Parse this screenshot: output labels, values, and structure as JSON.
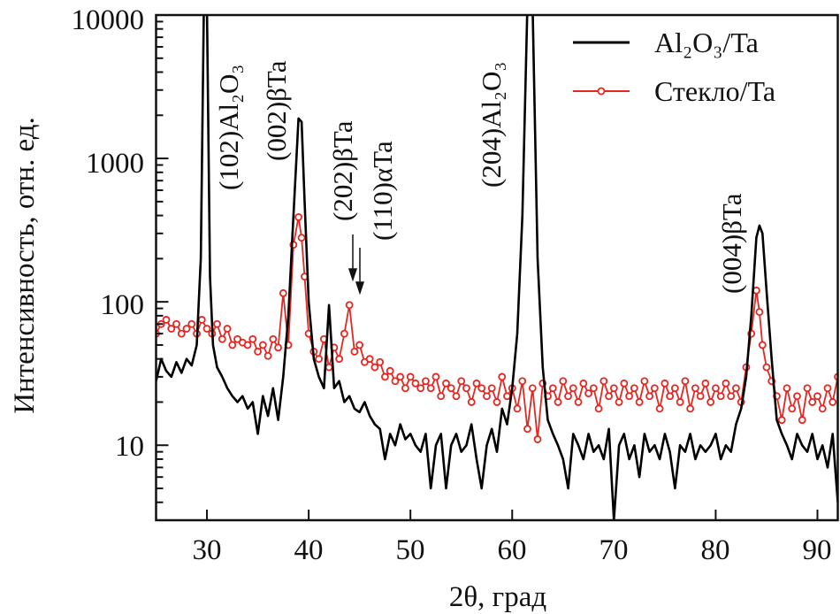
{
  "chart_data": {
    "type": "line",
    "title": "",
    "xlabel": "2θ, град",
    "ylabel": "Интенсивность, отн. ед.",
    "xlim": [
      25,
      92
    ],
    "ylim": [
      3,
      10000
    ],
    "yscale": "log",
    "grid": false,
    "legend_position": "top-right",
    "x_ticks": [
      "30",
      "40",
      "50",
      "60",
      "70",
      "80",
      "90"
    ],
    "y_ticks": [
      "10",
      "100",
      "1000",
      "10000"
    ],
    "series": [
      {
        "name": "Al₂O₃/Ta",
        "color": "#000000",
        "marker": "none",
        "points": [
          [
            25,
            28
          ],
          [
            25.5,
            40
          ],
          [
            26,
            33
          ],
          [
            26.5,
            30
          ],
          [
            27,
            38
          ],
          [
            27.5,
            32
          ],
          [
            28,
            40
          ],
          [
            28.5,
            36
          ],
          [
            29,
            50
          ],
          [
            29.4,
            200
          ],
          [
            29.7,
            12000
          ],
          [
            30,
            12000
          ],
          [
            30.3,
            150
          ],
          [
            30.6,
            50
          ],
          [
            31,
            35
          ],
          [
            31.5,
            30
          ],
          [
            32,
            25
          ],
          [
            32.5,
            22
          ],
          [
            33,
            20
          ],
          [
            33.5,
            22
          ],
          [
            34,
            18
          ],
          [
            34.5,
            20
          ],
          [
            35,
            12
          ],
          [
            35.5,
            22
          ],
          [
            36,
            16
          ],
          [
            36.5,
            25
          ],
          [
            37,
            15
          ],
          [
            37.5,
            30
          ],
          [
            38,
            80
          ],
          [
            38.5,
            400
          ],
          [
            39,
            1900
          ],
          [
            39.3,
            1800
          ],
          [
            39.6,
            500
          ],
          [
            40,
            100
          ],
          [
            40.5,
            40
          ],
          [
            41,
            30
          ],
          [
            41.5,
            25
          ],
          [
            42,
            95
          ],
          [
            42.5,
            25
          ],
          [
            43,
            28
          ],
          [
            43.5,
            20
          ],
          [
            44,
            22
          ],
          [
            44.5,
            18
          ],
          [
            45,
            17
          ],
          [
            45.5,
            20
          ],
          [
            46,
            16
          ],
          [
            46.5,
            14
          ],
          [
            47,
            13
          ],
          [
            47.5,
            8
          ],
          [
            48,
            12
          ],
          [
            48.5,
            10
          ],
          [
            49,
            14
          ],
          [
            49.5,
            11
          ],
          [
            50,
            12
          ],
          [
            50.5,
            10
          ],
          [
            51,
            9
          ],
          [
            51.5,
            12
          ],
          [
            52,
            5
          ],
          [
            52.5,
            10
          ],
          [
            53,
            12
          ],
          [
            53.5,
            5
          ],
          [
            54,
            10
          ],
          [
            54.5,
            12
          ],
          [
            55,
            9
          ],
          [
            55.5,
            10
          ],
          [
            56,
            14
          ],
          [
            56.5,
            8
          ],
          [
            57,
            5
          ],
          [
            57.5,
            10
          ],
          [
            58,
            13
          ],
          [
            58.5,
            9
          ],
          [
            59,
            18
          ],
          [
            59.5,
            14
          ],
          [
            60,
            25
          ],
          [
            60.5,
            60
          ],
          [
            61,
            400
          ],
          [
            61.5,
            12000
          ],
          [
            62,
            12000
          ],
          [
            62.5,
            200
          ],
          [
            63,
            35
          ],
          [
            63.5,
            15
          ],
          [
            64,
            12
          ],
          [
            64.5,
            10
          ],
          [
            65,
            8
          ],
          [
            65.5,
            5
          ],
          [
            66,
            12
          ],
          [
            66.5,
            10
          ],
          [
            67,
            8
          ],
          [
            67.5,
            12
          ],
          [
            68,
            9
          ],
          [
            68.5,
            10
          ],
          [
            69,
            8
          ],
          [
            69.5,
            13
          ],
          [
            70,
            3
          ],
          [
            70.5,
            10
          ],
          [
            71,
            12
          ],
          [
            71.5,
            8
          ],
          [
            72,
            10
          ],
          [
            72.5,
            6
          ],
          [
            73,
            12
          ],
          [
            73.5,
            9
          ],
          [
            74,
            10
          ],
          [
            74.5,
            8
          ],
          [
            75,
            12
          ],
          [
            75.5,
            9
          ],
          [
            76,
            5
          ],
          [
            76.5,
            10
          ],
          [
            77,
            9
          ],
          [
            77.5,
            12
          ],
          [
            78,
            8
          ],
          [
            78.5,
            10
          ],
          [
            79,
            9
          ],
          [
            79.5,
            10
          ],
          [
            80,
            12
          ],
          [
            80.5,
            8
          ],
          [
            81,
            10
          ],
          [
            81.5,
            9
          ],
          [
            82,
            14
          ],
          [
            82.5,
            18
          ],
          [
            83,
            30
          ],
          [
            83.5,
            80
          ],
          [
            84,
            280
          ],
          [
            84.3,
            340
          ],
          [
            84.6,
            300
          ],
          [
            85,
            120
          ],
          [
            85.5,
            40
          ],
          [
            86,
            15
          ],
          [
            86.5,
            12
          ],
          [
            87,
            10
          ],
          [
            87.5,
            8
          ],
          [
            88,
            12
          ],
          [
            88.5,
            10
          ],
          [
            89,
            9
          ],
          [
            89.5,
            12
          ],
          [
            90,
            8
          ],
          [
            90.5,
            10
          ],
          [
            91,
            7
          ],
          [
            91.5,
            12
          ],
          [
            92,
            4
          ]
        ]
      },
      {
        "name": "Стекло/Ta",
        "color": "#e8251f",
        "marker": "open-circle",
        "points": [
          [
            25,
            60
          ],
          [
            25.5,
            70
          ],
          [
            26,
            75
          ],
          [
            26.5,
            65
          ],
          [
            27,
            70
          ],
          [
            27.5,
            60
          ],
          [
            28,
            65
          ],
          [
            28.5,
            70
          ],
          [
            29,
            60
          ],
          [
            29.5,
            75
          ],
          [
            30,
            65
          ],
          [
            30.5,
            60
          ],
          [
            31,
            70
          ],
          [
            31.5,
            55
          ],
          [
            32,
            65
          ],
          [
            32.5,
            50
          ],
          [
            33,
            55
          ],
          [
            33.5,
            52
          ],
          [
            34,
            50
          ],
          [
            34.5,
            55
          ],
          [
            35,
            45
          ],
          [
            35.5,
            50
          ],
          [
            36,
            42
          ],
          [
            36.5,
            55
          ],
          [
            37,
            48
          ],
          [
            37.5,
            115
          ],
          [
            38,
            50
          ],
          [
            38.5,
            250
          ],
          [
            39,
            390
          ],
          [
            39.3,
            280
          ],
          [
            39.6,
            150
          ],
          [
            40,
            60
          ],
          [
            40.5,
            45
          ],
          [
            41,
            40
          ],
          [
            41.5,
            55
          ],
          [
            42,
            35
          ],
          [
            42.5,
            48
          ],
          [
            43,
            40
          ],
          [
            43.5,
            60
          ],
          [
            44,
            95
          ],
          [
            44.5,
            45
          ],
          [
            45,
            50
          ],
          [
            45.5,
            38
          ],
          [
            46,
            40
          ],
          [
            46.5,
            35
          ],
          [
            47,
            38
          ],
          [
            47.5,
            30
          ],
          [
            48,
            33
          ],
          [
            48.5,
            28
          ],
          [
            49,
            30
          ],
          [
            49.5,
            25
          ],
          [
            50,
            30
          ],
          [
            50.5,
            27
          ],
          [
            51,
            25
          ],
          [
            51.5,
            28
          ],
          [
            52,
            25
          ],
          [
            52.5,
            30
          ],
          [
            53,
            22
          ],
          [
            53.5,
            27
          ],
          [
            54,
            25
          ],
          [
            54.5,
            22
          ],
          [
            55,
            28
          ],
          [
            55.5,
            25
          ],
          [
            56,
            20
          ],
          [
            56.5,
            27
          ],
          [
            57,
            25
          ],
          [
            57.5,
            22
          ],
          [
            58,
            25
          ],
          [
            58.5,
            20
          ],
          [
            59,
            30
          ],
          [
            59.5,
            22
          ],
          [
            60,
            25
          ],
          [
            60.5,
            18
          ],
          [
            61,
            28
          ],
          [
            61.5,
            13
          ],
          [
            62,
            25
          ],
          [
            62.5,
            11
          ],
          [
            63,
            27
          ],
          [
            63.5,
            22
          ],
          [
            64,
            25
          ],
          [
            64.5,
            20
          ],
          [
            65,
            28
          ],
          [
            65.5,
            22
          ],
          [
            66,
            25
          ],
          [
            66.5,
            20
          ],
          [
            67,
            27
          ],
          [
            67.5,
            23
          ],
          [
            68,
            25
          ],
          [
            68.5,
            18
          ],
          [
            69,
            28
          ],
          [
            69.5,
            22
          ],
          [
            70,
            25
          ],
          [
            70.5,
            20
          ],
          [
            71,
            27
          ],
          [
            71.5,
            22
          ],
          [
            72,
            25
          ],
          [
            72.5,
            20
          ],
          [
            73,
            28
          ],
          [
            73.5,
            22
          ],
          [
            74,
            25
          ],
          [
            74.5,
            18
          ],
          [
            75,
            27
          ],
          [
            75.5,
            22
          ],
          [
            76,
            25
          ],
          [
            76.5,
            20
          ],
          [
            77,
            28
          ],
          [
            77.5,
            18
          ],
          [
            78,
            25
          ],
          [
            78.5,
            22
          ],
          [
            79,
            27
          ],
          [
            79.5,
            20
          ],
          [
            80,
            25
          ],
          [
            80.5,
            22
          ],
          [
            81,
            27
          ],
          [
            81.5,
            22
          ],
          [
            82,
            25
          ],
          [
            82.5,
            20
          ],
          [
            83,
            35
          ],
          [
            83.5,
            60
          ],
          [
            84,
            120
          ],
          [
            84.3,
            85
          ],
          [
            84.6,
            50
          ],
          [
            85,
            35
          ],
          [
            85.5,
            28
          ],
          [
            86,
            22
          ],
          [
            86.5,
            15
          ],
          [
            87,
            25
          ],
          [
            87.5,
            18
          ],
          [
            88,
            22
          ],
          [
            88.5,
            15
          ],
          [
            89,
            25
          ],
          [
            89.5,
            20
          ],
          [
            90,
            22
          ],
          [
            90.5,
            18
          ],
          [
            91,
            25
          ],
          [
            91.5,
            20
          ],
          [
            92,
            30
          ]
        ]
      }
    ],
    "annotations": [
      {
        "text": "(102)Al₂O₃",
        "x": 29.8
      },
      {
        "text": "(002)βTa",
        "x": 39.2
      },
      {
        "text": "(202)βTa",
        "x": 44.2,
        "arrow": true
      },
      {
        "text": "(110)αTa",
        "x": 45.0,
        "arrow": true
      },
      {
        "text": "(204)Al₂O₃",
        "x": 61.8
      },
      {
        "text": "(004)βTa",
        "x": 84.4
      }
    ]
  }
}
